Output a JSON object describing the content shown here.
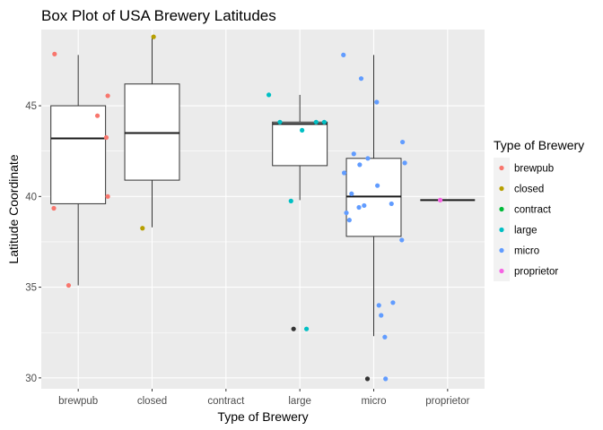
{
  "chart_data": {
    "type": "box",
    "title": "Box Plot of USA Brewery Latitudes",
    "xlabel": "Type of Brewery",
    "ylabel": "Latitude Coordinate",
    "categories": [
      "brewpub",
      "closed",
      "contract",
      "large",
      "micro",
      "proprietor"
    ],
    "yticks": [
      30,
      35,
      40,
      45
    ],
    "ylim": [
      29.4,
      49.2
    ],
    "grid": true,
    "panel_background": "#ebebeb",
    "grid_color": "#ffffff",
    "outlier_color": "#333333",
    "legend": {
      "title": "Type of Brewery",
      "position": "right",
      "items": [
        {
          "label": "brewpub",
          "color": "#F8766D"
        },
        {
          "label": "closed",
          "color": "#B79F00"
        },
        {
          "label": "contract",
          "color": "#00BA38"
        },
        {
          "label": "large",
          "color": "#00BFC4"
        },
        {
          "label": "micro",
          "color": "#619CFF"
        },
        {
          "label": "proprietor",
          "color": "#F564E3"
        }
      ]
    },
    "boxes": [
      {
        "category": "brewpub",
        "lower_whisker": 35.1,
        "q1": 39.6,
        "median": 43.2,
        "q3": 45.0,
        "upper_whisker": 47.8,
        "outliers": []
      },
      {
        "category": "closed",
        "lower_whisker": 38.3,
        "q1": 40.9,
        "median": 43.5,
        "q3": 46.2,
        "upper_whisker": 48.8,
        "outliers": []
      },
      {
        "category": "large",
        "lower_whisker": 39.8,
        "q1": 41.7,
        "median": 44.0,
        "q3": 44.1,
        "upper_whisker": 45.6,
        "outliers": [
          32.7
        ]
      },
      {
        "category": "micro",
        "lower_whisker": 32.3,
        "q1": 37.8,
        "median": 40.0,
        "q3": 42.1,
        "upper_whisker": 47.8,
        "outliers": [
          29.95
        ]
      },
      {
        "category": "proprietor",
        "lower_whisker": 39.8,
        "q1": 39.8,
        "median": 39.8,
        "q3": 39.8,
        "upper_whisker": 39.8,
        "outliers": []
      }
    ],
    "points": [
      {
        "category": "brewpub",
        "jitter": -0.32,
        "y": 47.85
      },
      {
        "category": "brewpub",
        "jitter": 0.4,
        "y": 45.55
      },
      {
        "category": "brewpub",
        "jitter": 0.26,
        "y": 44.45
      },
      {
        "category": "brewpub",
        "jitter": 0.38,
        "y": 43.25
      },
      {
        "category": "brewpub",
        "jitter": 0.4,
        "y": 40.0
      },
      {
        "category": "brewpub",
        "jitter": -0.33,
        "y": 39.35
      },
      {
        "category": "brewpub",
        "jitter": -0.13,
        "y": 35.1
      },
      {
        "category": "closed",
        "jitter": 0.02,
        "y": 48.8
      },
      {
        "category": "closed",
        "jitter": -0.13,
        "y": 38.25
      },
      {
        "category": "large",
        "jitter": -0.42,
        "y": 45.6
      },
      {
        "category": "large",
        "jitter": -0.27,
        "y": 44.1
      },
      {
        "category": "large",
        "jitter": 0.22,
        "y": 44.1
      },
      {
        "category": "large",
        "jitter": 0.33,
        "y": 44.1
      },
      {
        "category": "large",
        "jitter": 0.03,
        "y": 43.65
      },
      {
        "category": "large",
        "jitter": -0.12,
        "y": 39.75
      },
      {
        "category": "large",
        "jitter": 0.09,
        "y": 32.7
      },
      {
        "category": "micro",
        "jitter": -0.41,
        "y": 47.8
      },
      {
        "category": "micro",
        "jitter": -0.17,
        "y": 46.5
      },
      {
        "category": "micro",
        "jitter": 0.04,
        "y": 45.2
      },
      {
        "category": "micro",
        "jitter": 0.39,
        "y": 43.0
      },
      {
        "category": "micro",
        "jitter": -0.27,
        "y": 42.35
      },
      {
        "category": "micro",
        "jitter": -0.08,
        "y": 42.1
      },
      {
        "category": "micro",
        "jitter": 0.42,
        "y": 41.85
      },
      {
        "category": "micro",
        "jitter": -0.19,
        "y": 41.75
      },
      {
        "category": "micro",
        "jitter": -0.4,
        "y": 41.3
      },
      {
        "category": "micro",
        "jitter": 0.05,
        "y": 40.6
      },
      {
        "category": "micro",
        "jitter": -0.3,
        "y": 40.15
      },
      {
        "category": "micro",
        "jitter": -0.13,
        "y": 39.5
      },
      {
        "category": "micro",
        "jitter": 0.24,
        "y": 39.6
      },
      {
        "category": "micro",
        "jitter": -0.2,
        "y": 39.4
      },
      {
        "category": "micro",
        "jitter": -0.37,
        "y": 39.1
      },
      {
        "category": "micro",
        "jitter": -0.33,
        "y": 38.7
      },
      {
        "category": "micro",
        "jitter": 0.38,
        "y": 37.6
      },
      {
        "category": "micro",
        "jitter": 0.26,
        "y": 34.15
      },
      {
        "category": "micro",
        "jitter": 0.07,
        "y": 34.0
      },
      {
        "category": "micro",
        "jitter": 0.1,
        "y": 33.45
      },
      {
        "category": "micro",
        "jitter": 0.15,
        "y": 32.25
      },
      {
        "category": "micro",
        "jitter": 0.16,
        "y": 29.95
      },
      {
        "category": "proprietor",
        "jitter": -0.1,
        "y": 39.8
      }
    ]
  }
}
